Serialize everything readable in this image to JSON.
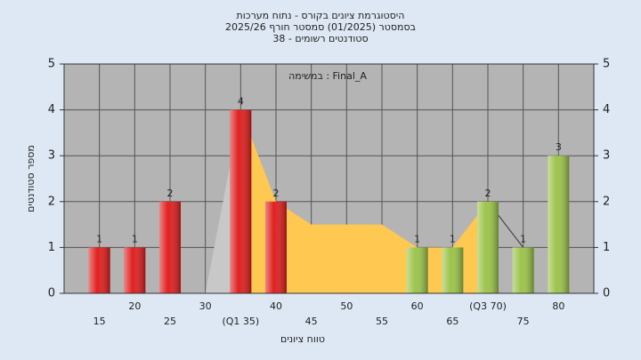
{
  "chart_data": {
    "type": "bar",
    "title": "היסטוגרמת ציונים בקורס - נתוח מערכות",
    "subtitle": "בסמסטר  (01/2025)  סמסטר חורף 2025/26",
    "subtitle2": "סטודנטים רשומים - 38",
    "annotation": "במשימה : Final_A",
    "x_label": "טווח ציונים",
    "y_label": "מספר סטודנטים",
    "x": [
      15,
      20,
      25,
      30,
      35,
      40,
      45,
      50,
      55,
      60,
      65,
      70,
      75,
      80
    ],
    "values": [
      1,
      1,
      2,
      0,
      4,
      2,
      0,
      0,
      0,
      1,
      1,
      2,
      1,
      3
    ],
    "bar_colors": [
      "#e02020",
      "#e02020",
      "#e02020",
      "#e02020",
      "#e02020",
      "#e02020",
      "#e02020",
      "#e02020",
      "#e02020",
      "#9cc44a",
      "#9cc44a",
      "#9cc44a",
      "#9cc44a",
      "#9cc44a"
    ],
    "areas": [
      {
        "color": "#c8c8c8",
        "values": [
          null,
          null,
          null,
          0,
          4,
          null,
          null,
          null,
          null,
          null,
          null,
          null,
          null,
          null
        ]
      },
      {
        "color": "#ffc850",
        "values": [
          null,
          null,
          null,
          null,
          4,
          2,
          1.5,
          1.5,
          1.5,
          1,
          1,
          2,
          null,
          null
        ]
      }
    ],
    "line": {
      "color": "#333333",
      "values": [
        null,
        null,
        null,
        null,
        null,
        null,
        null,
        null,
        null,
        null,
        null,
        2,
        1,
        null
      ]
    },
    "xlim": [
      10,
      85
    ],
    "xticks": [
      15,
      20,
      25,
      30,
      {
        "value": 35,
        "label": "(Q1 35)"
      },
      40,
      45,
      50,
      55,
      60,
      65,
      {
        "value": 70,
        "label": "(Q3 70)"
      },
      75,
      80
    ],
    "ylim": [
      0,
      5
    ],
    "yticks": [
      0,
      1,
      2,
      3,
      4,
      5
    ],
    "grid": true
  }
}
